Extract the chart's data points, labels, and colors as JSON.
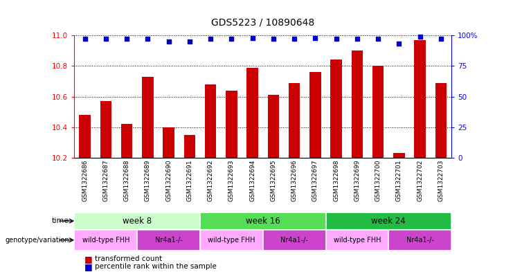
{
  "title": "GDS5223 / 10890648",
  "samples": [
    "GSM1322686",
    "GSM1322687",
    "GSM1322688",
    "GSM1322689",
    "GSM1322690",
    "GSM1322691",
    "GSM1322692",
    "GSM1322693",
    "GSM1322694",
    "GSM1322695",
    "GSM1322696",
    "GSM1322697",
    "GSM1322698",
    "GSM1322699",
    "GSM1322700",
    "GSM1322701",
    "GSM1322702",
    "GSM1322703"
  ],
  "bar_values": [
    10.48,
    10.57,
    10.42,
    10.73,
    10.4,
    10.35,
    10.68,
    10.64,
    10.79,
    10.61,
    10.69,
    10.76,
    10.84,
    10.9,
    10.8,
    10.23,
    10.97,
    10.69
  ],
  "percentile_values": [
    97,
    97,
    97,
    97,
    95,
    95,
    97,
    97,
    98,
    97,
    97,
    98,
    97,
    97,
    97,
    93,
    99,
    97
  ],
  "bar_color": "#cc0000",
  "dot_color": "#0000cc",
  "ylim_left": [
    10.2,
    11.0
  ],
  "ylim_right": [
    0,
    100
  ],
  "yticks_left": [
    10.2,
    10.4,
    10.6,
    10.8,
    11.0
  ],
  "yticks_right": [
    0,
    25,
    50,
    75,
    100
  ],
  "time_weeks": [
    [
      0,
      6,
      "week 8",
      "#ccffcc"
    ],
    [
      6,
      12,
      "week 16",
      "#55dd55"
    ],
    [
      12,
      18,
      "week 24",
      "#22bb44"
    ]
  ],
  "geno_segments": [
    [
      0,
      3,
      "wild-type FHH",
      "#ffaaff"
    ],
    [
      3,
      6,
      "Nr4a1-/-",
      "#cc44cc"
    ],
    [
      6,
      9,
      "wild-type FHH",
      "#ffaaff"
    ],
    [
      9,
      12,
      "Nr4a1-/-",
      "#cc44cc"
    ],
    [
      12,
      15,
      "wild-type FHH",
      "#ffaaff"
    ],
    [
      15,
      18,
      "Nr4a1-/-",
      "#cc44cc"
    ]
  ],
  "time_label": "time",
  "genotype_label": "genotype/variation",
  "legend_bar": "transformed count",
  "legend_dot": "percentile rank within the sample",
  "sample_bg_color": "#cccccc"
}
